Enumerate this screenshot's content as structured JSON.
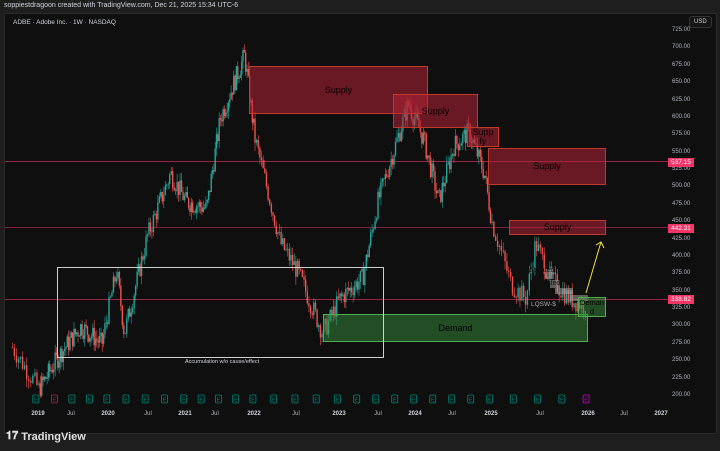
{
  "header": {
    "credit": "soppiestdragoon created with TradingView.com, Dec 21, 2025 15:34 UTC-6"
  },
  "symbol": {
    "title": "ADBE · Adobe Inc. · 1W · NASDAQ",
    "currency": "USD"
  },
  "price_axis": [
    "725.00",
    "700.00",
    "675.00",
    "650.00",
    "625.00",
    "600.00",
    "575.00",
    "550.00",
    "525.00",
    "500.00",
    "475.00",
    "450.00",
    "425.00",
    "400.00",
    "375.00",
    "350.00",
    "325.00",
    "300.00",
    "275.00",
    "250.00",
    "225.00",
    "200.00"
  ],
  "price_tags": [
    {
      "value": "537.15",
      "color": "#f23668"
    },
    {
      "value": "442.31",
      "color": "#f23668"
    },
    {
      "value": "338.82",
      "color": "#f23668"
    }
  ],
  "time_axis": [
    {
      "label": "2019",
      "year": true
    },
    {
      "label": "Jul"
    },
    {
      "label": "2020",
      "year": true
    },
    {
      "label": "Jul"
    },
    {
      "label": "2021",
      "year": true
    },
    {
      "label": "Jul"
    },
    {
      "label": "2022",
      "year": true
    },
    {
      "label": "Jul"
    },
    {
      "label": "2023",
      "year": true
    },
    {
      "label": "Jul"
    },
    {
      "label": "2024",
      "year": true
    },
    {
      "label": "Jul"
    },
    {
      "label": "2025",
      "year": true
    },
    {
      "label": "Jul"
    },
    {
      "label": "2026",
      "year": true
    },
    {
      "label": "Jul"
    },
    {
      "label": "2027",
      "year": true
    }
  ],
  "zones": {
    "supply1": "Supply",
    "supply2": "Supply",
    "supply3": "Supp ly",
    "supply4": "Supply",
    "supply5": "Supply",
    "demand": "Demand",
    "demand_small": "Deman d",
    "mitigated1": "Mitigated",
    "mitigated2": "Mitigated",
    "lqsw": "LQSW-$",
    "accumulation": "Accumulation w/o cause/effect"
  },
  "earnings_marker": "E",
  "colors": {
    "up": "#26a69a",
    "down": "#ef5350",
    "supply": "#b22234",
    "demand": "#388e3c",
    "level_line": "#f23668",
    "arrow": "#f5e03c"
  },
  "chart_data": {
    "type": "candlestick",
    "interval": "1W",
    "ylim": [
      200,
      725
    ],
    "approx_closes": [
      [
        2018.75,
        270
      ],
      [
        2019.0,
        210
      ],
      [
        2019.3,
        260
      ],
      [
        2019.6,
        300
      ],
      [
        2019.9,
        275
      ],
      [
        2020.1,
        380
      ],
      [
        2020.2,
        290
      ],
      [
        2020.5,
        430
      ],
      [
        2020.8,
        520
      ],
      [
        2021.0,
        480
      ],
      [
        2021.3,
        470
      ],
      [
        2021.5,
        600
      ],
      [
        2021.85,
        690
      ],
      [
        2022.0,
        570
      ],
      [
        2022.3,
        420
      ],
      [
        2022.5,
        380
      ],
      [
        2022.8,
        290
      ],
      [
        2023.0,
        340
      ],
      [
        2023.3,
        370
      ],
      [
        2023.5,
        480
      ],
      [
        2023.9,
        620
      ],
      [
        2024.1,
        570
      ],
      [
        2024.3,
        480
      ],
      [
        2024.5,
        560
      ],
      [
        2024.7,
        580
      ],
      [
        2024.9,
        520
      ],
      [
        2025.0,
        450
      ],
      [
        2025.2,
        360
      ],
      [
        2025.35,
        340
      ],
      [
        2025.45,
        420
      ],
      [
        2025.6,
        370
      ],
      [
        2025.8,
        340
      ],
      [
        2025.95,
        330
      ],
      [
        2026.0,
        350
      ]
    ]
  },
  "footer": {
    "brand": "TradingView"
  }
}
